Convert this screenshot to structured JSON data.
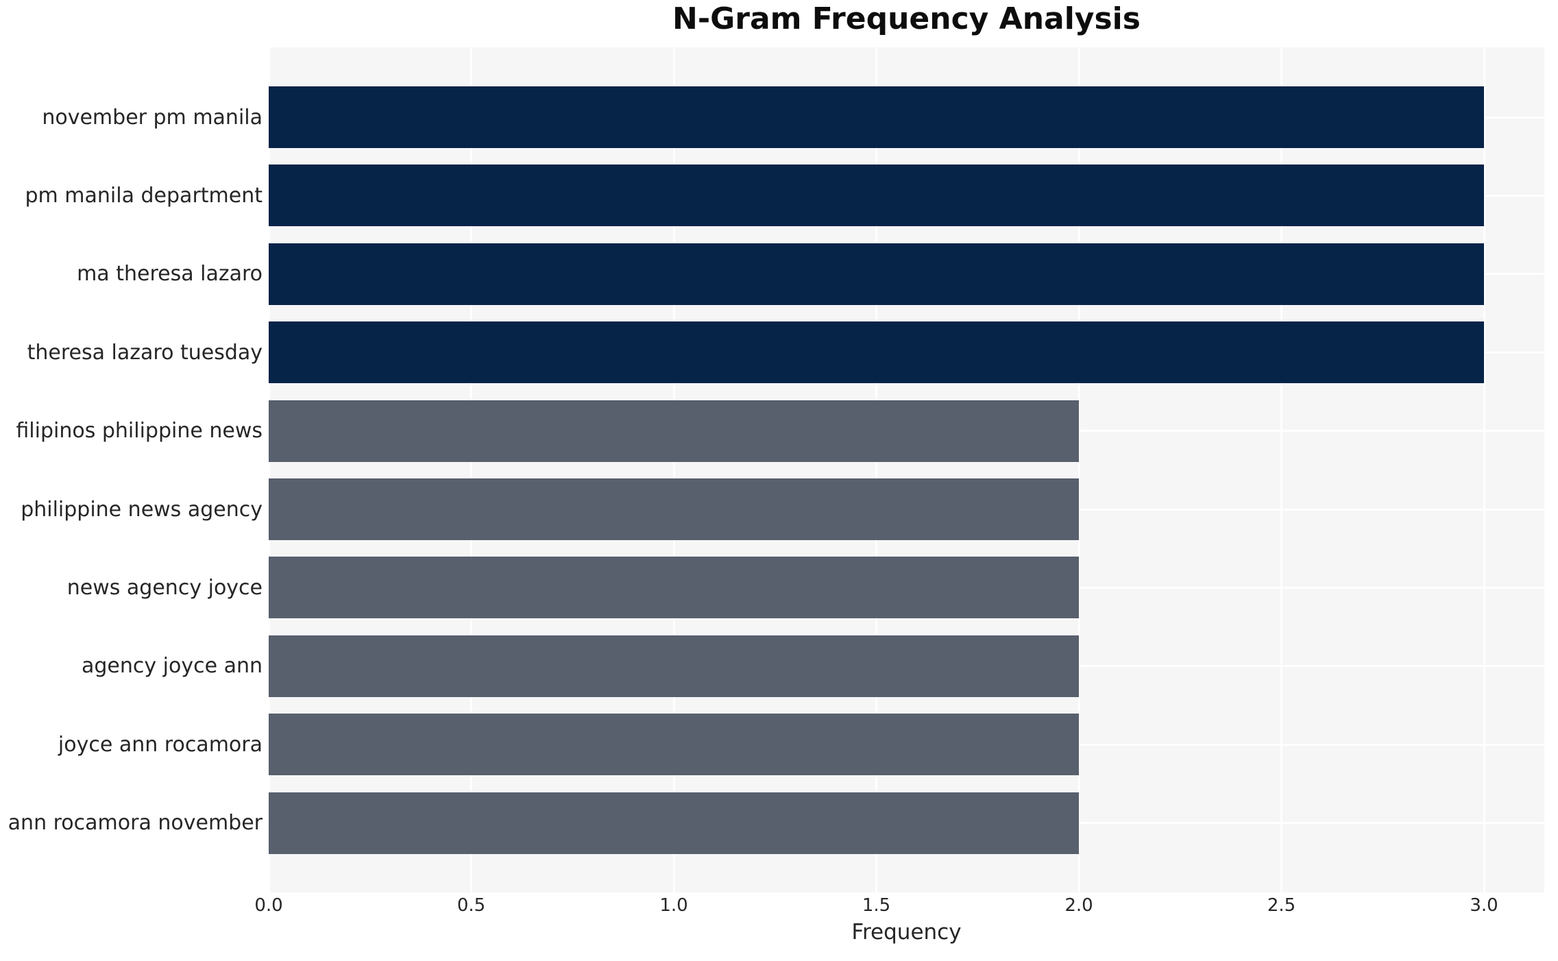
{
  "chart_data": {
    "type": "bar",
    "orientation": "horizontal",
    "title": "N-Gram Frequency Analysis",
    "xlabel": "Frequency",
    "ylabel": "",
    "categories": [
      "november pm manila",
      "pm manila department",
      "ma theresa lazaro",
      "theresa lazaro tuesday",
      "filipinos philippine news",
      "philippine news agency",
      "news agency joyce",
      "agency joyce ann",
      "joyce ann rocamora",
      "ann rocamora november"
    ],
    "values": [
      3,
      3,
      3,
      3,
      2,
      2,
      2,
      2,
      2,
      2
    ],
    "xlim": [
      0.0,
      3.15
    ],
    "xticks": [
      0.0,
      0.5,
      1.0,
      1.5,
      2.0,
      2.5,
      3.0
    ],
    "xtick_labels": [
      "0.0",
      "0.5",
      "1.0",
      "1.5",
      "2.0",
      "2.5",
      "3.0"
    ],
    "grid": true,
    "legend": false,
    "colors": {
      "palette": {
        "3": "#062348",
        "2": "#585f6d"
      },
      "plot_background": "#f6f6f7",
      "grid_color": "#ffffff",
      "text_color": "#262626",
      "title_color": "#0d0d0d"
    }
  }
}
